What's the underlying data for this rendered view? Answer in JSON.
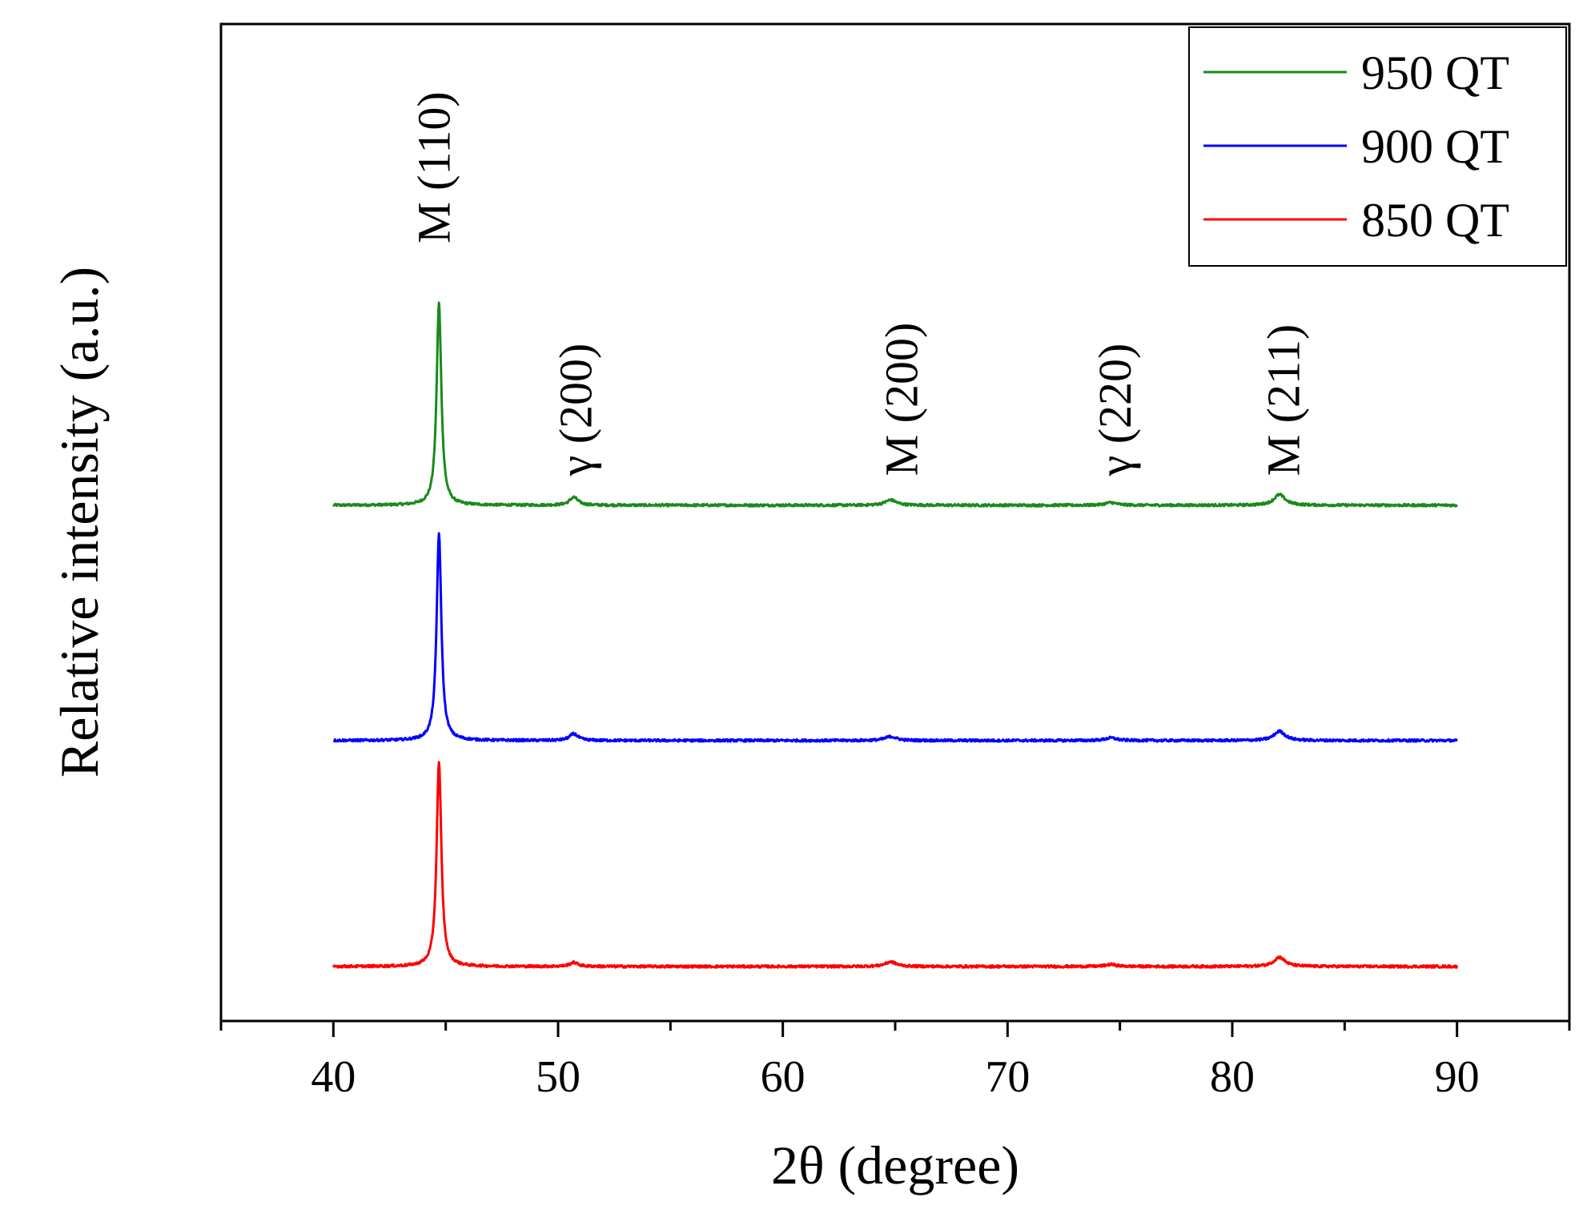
{
  "chart_data": {
    "type": "line",
    "title": "",
    "xlabel": "2θ (degree)",
    "ylabel": "Relative intensity (a.u.)",
    "xlim": [
      35,
      95
    ],
    "ylim": [
      0,
      1.5
    ],
    "x_ticks": [
      40,
      50,
      60,
      70,
      80,
      90
    ],
    "x_tick_labels": [
      "40",
      "50",
      "60",
      "70",
      "80",
      "90"
    ],
    "y_ticks_shown": false,
    "legend": {
      "position": "top-right",
      "order": [
        "950 QT",
        "900 QT",
        "850 QT"
      ]
    },
    "series": [
      {
        "name": "950 QT",
        "color": "#1a8a1a",
        "baseline": 0.776,
        "x_range": [
          40,
          90
        ],
        "peaks": [
          {
            "x": 44.7,
            "height": 0.304,
            "width": 0.25
          },
          {
            "x": 50.7,
            "height": 0.012,
            "width": 0.45
          },
          {
            "x": 64.8,
            "height": 0.008,
            "width": 0.6
          },
          {
            "x": 74.6,
            "height": 0.004,
            "width": 0.6
          },
          {
            "x": 82.1,
            "height": 0.016,
            "width": 0.6
          }
        ]
      },
      {
        "name": "900 QT",
        "color": "#0000ff",
        "baseline": 0.422,
        "x_range": [
          40,
          90
        ],
        "peaks": [
          {
            "x": 44.7,
            "height": 0.311,
            "width": 0.25
          },
          {
            "x": 50.7,
            "height": 0.01,
            "width": 0.45
          },
          {
            "x": 64.8,
            "height": 0.006,
            "width": 0.6
          },
          {
            "x": 74.6,
            "height": 0.004,
            "width": 0.6
          },
          {
            "x": 82.1,
            "height": 0.014,
            "width": 0.6
          }
        ]
      },
      {
        "name": "850 QT",
        "color": "#ff0000",
        "baseline": 0.082,
        "x_range": [
          40,
          90
        ],
        "peaks": [
          {
            "x": 44.7,
            "height": 0.308,
            "width": 0.25
          },
          {
            "x": 50.7,
            "height": 0.006,
            "width": 0.45
          },
          {
            "x": 64.8,
            "height": 0.007,
            "width": 0.6
          },
          {
            "x": 74.6,
            "height": 0.003,
            "width": 0.6
          },
          {
            "x": 82.1,
            "height": 0.014,
            "width": 0.6
          }
        ]
      }
    ],
    "annotations": [
      {
        "text": "M (110)",
        "x": 44.7,
        "y": 1.17
      },
      {
        "text": "γ (200)",
        "x": 51.0,
        "y": 0.82
      },
      {
        "text": "M (200)",
        "x": 65.5,
        "y": 0.82
      },
      {
        "text": "γ (220)",
        "x": 75.0,
        "y": 0.82
      },
      {
        "text": "M (211)",
        "x": 82.5,
        "y": 0.82
      }
    ]
  }
}
